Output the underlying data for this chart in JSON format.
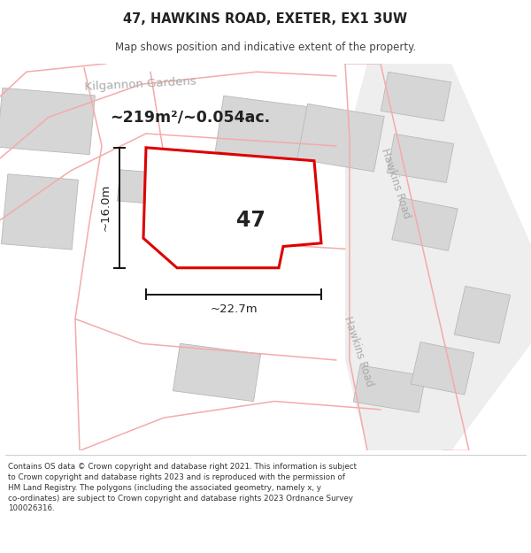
{
  "title": "47, HAWKINS ROAD, EXETER, EX1 3UW",
  "subtitle": "Map shows position and indicative extent of the property.",
  "footer": "Contains OS data © Crown copyright and database right 2021. This information is subject\nto Crown copyright and database rights 2023 and is reproduced with the permission of\nHM Land Registry. The polygons (including the associated geometry, namely x, y\nco-ordinates) are subject to Crown copyright and database rights 2023 Ordnance Survey\n100026316.",
  "area_label": "~219m²/~0.054ac.",
  "width_label": "~22.7m",
  "height_label": "~16.0m",
  "property_number": "47",
  "map_bg": "#f7f7f7",
  "building_fill": "#d6d6d6",
  "building_edge": "#b8b8b8",
  "road_fill": "#eeeeee",
  "road_line_color": "#f5aaaa",
  "plot_color": "#dd0000",
  "dim_line_color": "#111111",
  "label_color": "#aaaaaa",
  "text_color": "#222222"
}
